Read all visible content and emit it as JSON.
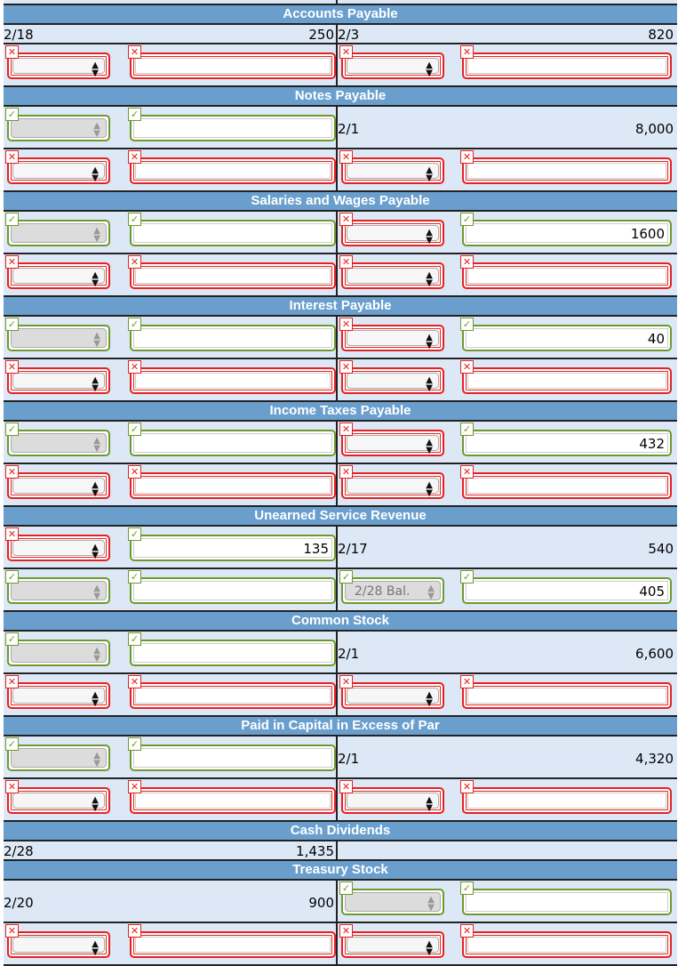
{
  "colors": {
    "header": "#6a9fcd",
    "row": "#dde8f6",
    "error": "#e52222",
    "correct": "#6f9a2b"
  },
  "icons": {
    "error": "x-icon",
    "correct": "check-icon",
    "select": "up-down-arrows-icon"
  },
  "sections": [
    {
      "title": null,
      "rows": [
        {
          "type": "inp",
          "left": {
            "sel": {
              "s": "red"
            },
            "in": {
              "s": "red"
            }
          },
          "right": {
            "sel": {
              "s": "red"
            },
            "in": {
              "s": "red"
            }
          }
        }
      ]
    },
    {
      "title": "Accounts Payable",
      "rows": [
        {
          "type": "txt",
          "left": {
            "date": "2/18",
            "amount": "250"
          },
          "right": {
            "date": "2/3",
            "amount": "820"
          }
        },
        {
          "type": "inp",
          "left": {
            "sel": {
              "s": "red"
            },
            "in": {
              "s": "red"
            }
          },
          "right": {
            "sel": {
              "s": "red"
            },
            "in": {
              "s": "red"
            }
          }
        }
      ]
    },
    {
      "title": "Notes Payable",
      "rows": [
        {
          "type": "inp",
          "left": {
            "sel": {
              "s": "green",
              "dis": true
            },
            "in": {
              "s": "green"
            }
          },
          "right": {
            "date": "2/1",
            "amount": "8,000"
          }
        },
        {
          "type": "inp",
          "left": {
            "sel": {
              "s": "red"
            },
            "in": {
              "s": "red"
            }
          },
          "right": {
            "sel": {
              "s": "red"
            },
            "in": {
              "s": "red"
            }
          }
        }
      ]
    },
    {
      "title": "Salaries and Wages Payable",
      "rows": [
        {
          "type": "inp",
          "left": {
            "sel": {
              "s": "green",
              "dis": true
            },
            "in": {
              "s": "green"
            }
          },
          "right": {
            "sel": {
              "s": "red"
            },
            "in": {
              "s": "green",
              "v": "1600"
            }
          }
        },
        {
          "type": "inp",
          "left": {
            "sel": {
              "s": "red"
            },
            "in": {
              "s": "red"
            }
          },
          "right": {
            "sel": {
              "s": "red"
            },
            "in": {
              "s": "red"
            }
          }
        }
      ]
    },
    {
      "title": "Interest Payable",
      "rows": [
        {
          "type": "inp",
          "left": {
            "sel": {
              "s": "green",
              "dis": true
            },
            "in": {
              "s": "green"
            }
          },
          "right": {
            "sel": {
              "s": "red"
            },
            "in": {
              "s": "green",
              "v": "40"
            }
          }
        },
        {
          "type": "inp",
          "left": {
            "sel": {
              "s": "red"
            },
            "in": {
              "s": "red"
            }
          },
          "right": {
            "sel": {
              "s": "red"
            },
            "in": {
              "s": "red"
            }
          }
        }
      ]
    },
    {
      "title": "Income Taxes Payable",
      "rows": [
        {
          "type": "inp",
          "left": {
            "sel": {
              "s": "green",
              "dis": true
            },
            "in": {
              "s": "green"
            }
          },
          "right": {
            "sel": {
              "s": "red"
            },
            "in": {
              "s": "green",
              "v": "432"
            }
          }
        },
        {
          "type": "inp",
          "left": {
            "sel": {
              "s": "red"
            },
            "in": {
              "s": "red"
            }
          },
          "right": {
            "sel": {
              "s": "red"
            },
            "in": {
              "s": "red"
            }
          }
        }
      ]
    },
    {
      "title": "Unearned Service Revenue",
      "rows": [
        {
          "type": "inp",
          "left": {
            "sel": {
              "s": "red"
            },
            "in": {
              "s": "green",
              "v": "135"
            }
          },
          "right": {
            "date": "2/17",
            "amount": "540"
          }
        },
        {
          "type": "inp",
          "left": {
            "sel": {
              "s": "green",
              "dis": true
            },
            "in": {
              "s": "green"
            }
          },
          "right": {
            "sel": {
              "s": "green",
              "dis": true,
              "v": "2/28 Bal."
            },
            "in": {
              "s": "green",
              "v": "405"
            }
          }
        }
      ]
    },
    {
      "title": "Common Stock",
      "rows": [
        {
          "type": "inp",
          "left": {
            "sel": {
              "s": "green",
              "dis": true
            },
            "in": {
              "s": "green"
            }
          },
          "right": {
            "date": "2/1",
            "amount": "6,600"
          }
        },
        {
          "type": "inp",
          "left": {
            "sel": {
              "s": "red"
            },
            "in": {
              "s": "red"
            }
          },
          "right": {
            "sel": {
              "s": "red"
            },
            "in": {
              "s": "red"
            }
          }
        }
      ]
    },
    {
      "title": "Paid in Capital in Excess of Par",
      "rows": [
        {
          "type": "inp",
          "left": {
            "sel": {
              "s": "green",
              "dis": true
            },
            "in": {
              "s": "green"
            }
          },
          "right": {
            "date": "2/1",
            "amount": "4,320"
          }
        },
        {
          "type": "inp",
          "left": {
            "sel": {
              "s": "red"
            },
            "in": {
              "s": "red"
            }
          },
          "right": {
            "sel": {
              "s": "red"
            },
            "in": {
              "s": "red"
            }
          }
        }
      ]
    },
    {
      "title": "Cash Dividends",
      "rows": [
        {
          "type": "txt",
          "left": {
            "date": "2/28",
            "amount": "1,435"
          },
          "right": {
            "date": "",
            "amount": ""
          }
        }
      ]
    },
    {
      "title": "Treasury Stock",
      "rows": [
        {
          "type": "inp",
          "left": {
            "date": "2/20",
            "amount": "900"
          },
          "right": {
            "sel": {
              "s": "green",
              "dis": true
            },
            "in": {
              "s": "green"
            }
          }
        },
        {
          "type": "inp",
          "left": {
            "sel": {
              "s": "red"
            },
            "in": {
              "s": "red"
            }
          },
          "right": {
            "sel": {
              "s": "red"
            },
            "in": {
              "s": "red"
            }
          }
        }
      ]
    }
  ]
}
